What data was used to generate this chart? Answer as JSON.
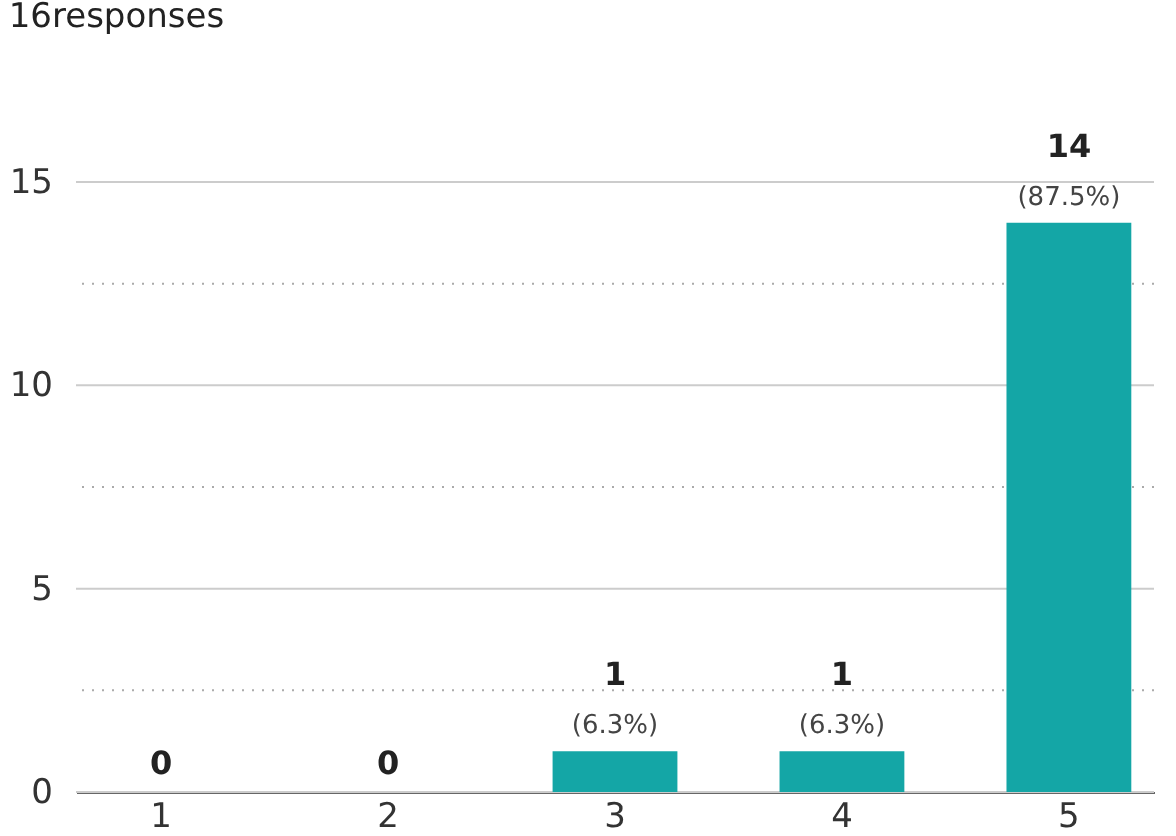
{
  "chart_data": {
    "type": "bar",
    "title": "16responses",
    "categories": [
      "1",
      "2",
      "3",
      "4",
      "5"
    ],
    "values": [
      0,
      0,
      1,
      1,
      14
    ],
    "color": "#14a6a6",
    "value_labels": [
      "0",
      "0",
      "1\n(6.3%)",
      "1\n(6.3%)",
      "14\n(87.5%)"
    ],
    "ylim": [
      0,
      15
    ],
    "yticks": [
      0,
      {
        "value": 2.5,
        "label": null
      },
      5,
      {
        "value": 7.5,
        "label": null
      },
      10,
      {
        "value": 12.5,
        "label": null
      },
      15
    ],
    "grid": true
  }
}
